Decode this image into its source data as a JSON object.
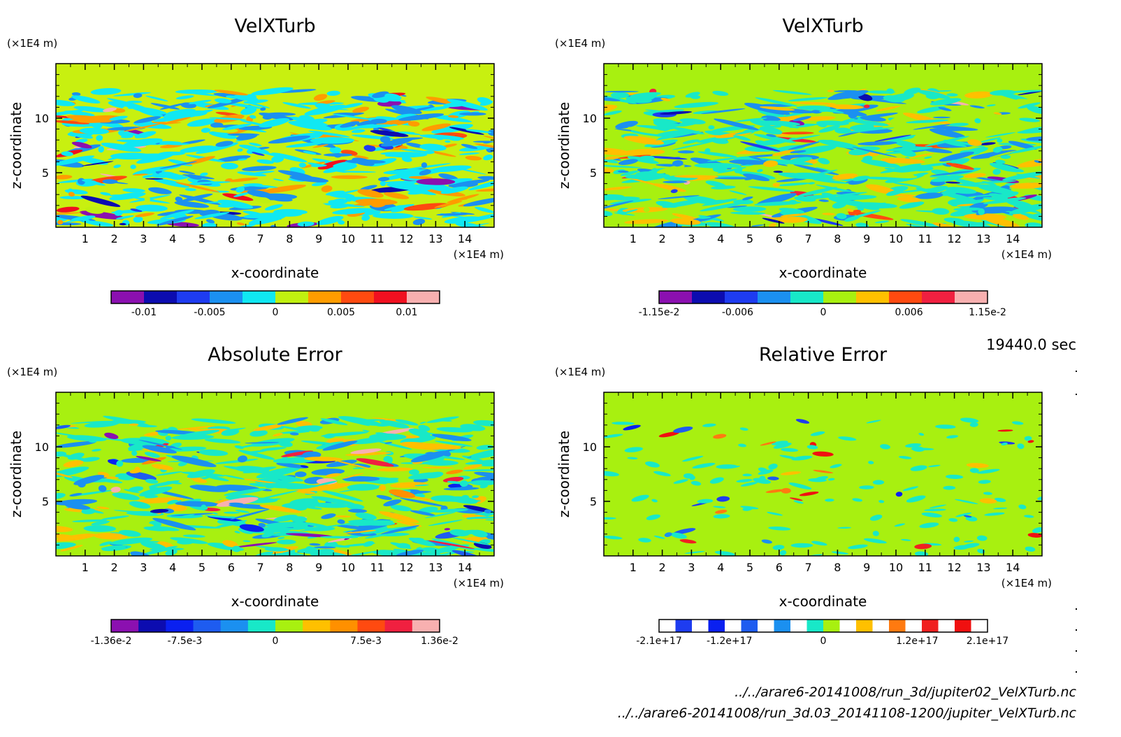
{
  "chart_data": [
    {
      "type": "heatmap",
      "title": "VelXTurb",
      "xlabel": "x-coordinate",
      "ylabel": "z-coordinate",
      "x_unit": "(×1E4 m)",
      "y_unit": "(×1E4 m)",
      "xlim": [
        0,
        15
      ],
      "ylim": [
        0,
        15
      ],
      "x_ticks": [
        "1",
        "2",
        "3",
        "4",
        "5",
        "6",
        "7",
        "8",
        "9",
        "10",
        "11",
        "12",
        "13",
        "14"
      ],
      "y_ticks": [
        "5",
        "10"
      ],
      "colorbar": {
        "colors": [
          "#8b10b0",
          "#0c0cb0",
          "#1e3cf0",
          "#1b90f0",
          "#10e8f2",
          "#c0f010",
          "#ff9c00",
          "#ff4a10",
          "#f01020",
          "#f8b0b0"
        ],
        "range": [
          -0.0125,
          0.0125
        ],
        "ticks": [
          -0.01,
          -0.005,
          0,
          0.005,
          0.01
        ],
        "tick_labels": [
          "-0.01",
          "-0.005",
          "0",
          "0.005",
          "0.01"
        ]
      },
      "background_color": "#c8f010",
      "data_band_top": 12.5
    },
    {
      "type": "heatmap",
      "title": "VelXTurb",
      "xlabel": "x-coordinate",
      "ylabel": "z-coordinate",
      "x_unit": "(×1E4 m)",
      "y_unit": "(×1E4 m)",
      "xlim": [
        0,
        15
      ],
      "ylim": [
        0,
        15
      ],
      "x_ticks": [
        "1",
        "2",
        "3",
        "4",
        "5",
        "6",
        "7",
        "8",
        "9",
        "10",
        "11",
        "12",
        "13",
        "14"
      ],
      "y_ticks": [
        "5",
        "10"
      ],
      "colorbar": {
        "colors": [
          "#8b10b0",
          "#0c0cb0",
          "#1e3cf0",
          "#1b90f0",
          "#18e8c8",
          "#a8f010",
          "#ffc000",
          "#ff4a10",
          "#f02040",
          "#f8b0b0"
        ],
        "range": [
          -0.0115,
          0.0115
        ],
        "ticks": [
          -0.0115,
          -0.006,
          0,
          0.006,
          0.0115
        ],
        "tick_labels": [
          "-1.15e-2",
          "-0.006",
          "0",
          "0.006",
          "1.15e-2"
        ]
      },
      "background_color": "#a8f010",
      "data_band_top": 12.5
    },
    {
      "type": "heatmap",
      "title": "Absolute Error",
      "xlabel": "x-coordinate",
      "ylabel": "z-coordinate",
      "x_unit": "(×1E4 m)",
      "y_unit": "(×1E4 m)",
      "xlim": [
        0,
        15
      ],
      "ylim": [
        0,
        15
      ],
      "x_ticks": [
        "1",
        "2",
        "3",
        "4",
        "5",
        "6",
        "7",
        "8",
        "9",
        "10",
        "11",
        "12",
        "13",
        "14"
      ],
      "y_ticks": [
        "5",
        "10"
      ],
      "colorbar": {
        "colors": [
          "#8b10b0",
          "#0c0cb0",
          "#0a20f0",
          "#1e5cf0",
          "#1b90f0",
          "#18e8c8",
          "#a8f010",
          "#ffc000",
          "#ff9000",
          "#ff4a10",
          "#f02040",
          "#f8b0b0"
        ],
        "range": [
          -0.0136,
          0.0136
        ],
        "ticks": [
          -0.0136,
          -0.0075,
          0,
          0.0075,
          0.0136
        ],
        "tick_labels": [
          "-1.36e-2",
          "-7.5e-3",
          "0",
          "7.5e-3",
          "1.36e-2"
        ]
      },
      "background_color": "#a8f010",
      "data_band_top": 12.5
    },
    {
      "type": "heatmap",
      "title": "Relative Error",
      "xlabel": "x-coordinate",
      "ylabel": "z-coordinate",
      "x_unit": "(×1E4 m)",
      "y_unit": "(×1E4 m)",
      "xlim": [
        0,
        15
      ],
      "ylim": [
        0,
        15
      ],
      "x_ticks": [
        "1",
        "2",
        "3",
        "4",
        "5",
        "6",
        "7",
        "8",
        "9",
        "10",
        "11",
        "12",
        "13",
        "14"
      ],
      "y_ticks": [
        "5",
        "10"
      ],
      "colorbar": {
        "segments": [
          "#ffffff",
          "#1e3cf0",
          "#ffffff",
          "#0a20f0",
          "#ffffff",
          "#1e5cf0",
          "#ffffff",
          "#1b90f0",
          "#ffffff",
          "#18e8c8",
          "#a8f010",
          "#ffffff",
          "#ffc000",
          "#ffffff",
          "#ff7a10",
          "#ffffff",
          "#f02020",
          "#ffffff",
          "#f01010",
          "#ffffff"
        ],
        "range": [
          -2.1e+17,
          2.1e+17
        ],
        "ticks": [
          -2.1e+17,
          -1.2e+17,
          0,
          1.2e+17,
          2.1e+17
        ],
        "tick_labels": [
          "-2.1e+17",
          "-1.2e+17",
          "0",
          "1.2e+17",
          "2.1e+17"
        ]
      },
      "background_color": "#a8f010",
      "data_band_top": 12.5
    }
  ],
  "time_label": "19440.0 sec",
  "file_paths": [
    "../../arare6-20141008/run_3d/jupiter02_VelXTurb.nc",
    "../../arare6-20141008/run_3d.03_20141108-1200/jupiter_VelXTurb.nc"
  ]
}
